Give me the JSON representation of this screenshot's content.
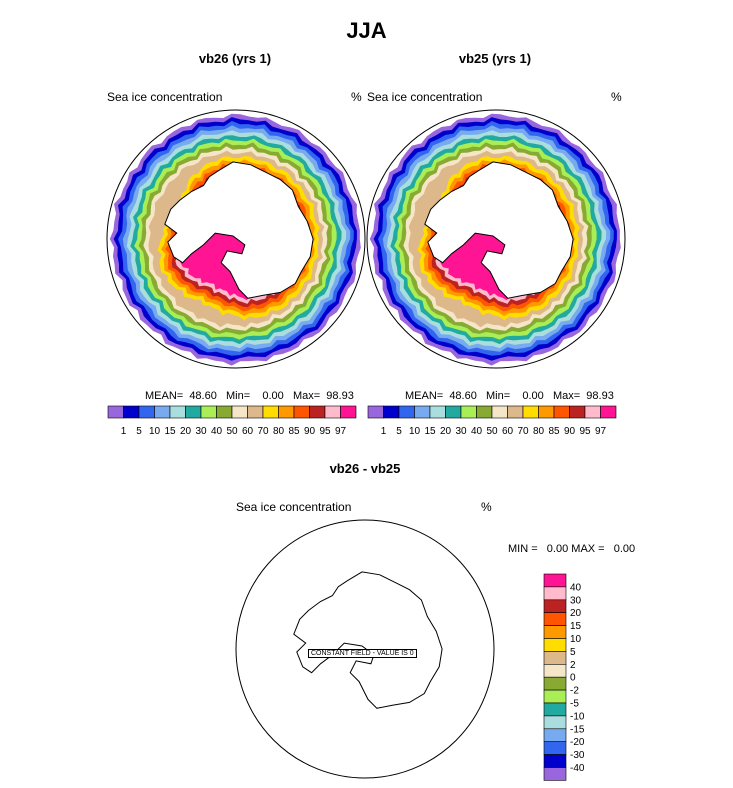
{
  "main_title": "JJA",
  "colors": {
    "ice": [
      "#9966dd",
      "#0000cc",
      "#3366ee",
      "#77aaee",
      "#aadddd",
      "#22aaa0",
      "#aaee55",
      "#88aa33",
      "#f5e6c8",
      "#ddb88a",
      "#ffdd00",
      "#ff9900",
      "#ff5500",
      "#bb2222",
      "#ffbbcc",
      "#ff1493"
    ],
    "diff": [
      "#9966dd",
      "#0000cc",
      "#3366ee",
      "#77aaee",
      "#aadddd",
      "#22aaa0",
      "#aaee55",
      "#88aa33",
      "#f5e6c8",
      "#ddb88a",
      "#ffdd00",
      "#ff9900",
      "#ff5500",
      "#bb2222",
      "#ffbbcc",
      "#ff1493"
    ]
  },
  "panels": [
    {
      "title": "vb26 (yrs 1)",
      "left_label": "Sea ice concentration",
      "right_label": "%",
      "stats": "MEAN=  48.60   Min=    0.00   Max=  98.93"
    },
    {
      "title": "vb25 (yrs 1)",
      "left_label": "Sea ice concentration",
      "right_label": "%",
      "stats": "MEAN=  48.60   Min=    0.00   Max=  98.93"
    }
  ],
  "ice_colorbar_labels": [
    "1",
    "5",
    "10",
    "15",
    "20",
    "30",
    "40",
    "50",
    "60",
    "70",
    "80",
    "85",
    "90",
    "95",
    "97"
  ],
  "diff_panel": {
    "title": "vb26 - vb25",
    "left_label": "Sea ice concentration",
    "right_label": "%",
    "stats": "MIN =   0.00 MAX =   0.00",
    "annotation": "CONSTANT FIELD - VALUE IS 0",
    "colorbar_labels": [
      "40",
      "30",
      "20",
      "15",
      "10",
      "5",
      "2",
      "0",
      "-2",
      "-5",
      "-10",
      "-15",
      "-20",
      "-30",
      "-40"
    ]
  },
  "chart_data": [
    {
      "type": "heatmap",
      "title": "vb26 (yrs 1)",
      "variable": "Sea ice concentration",
      "units": "%",
      "levels": [
        1,
        5,
        10,
        15,
        20,
        30,
        40,
        50,
        60,
        70,
        80,
        85,
        90,
        95,
        97
      ],
      "mean": 48.6,
      "min": 0.0,
      "max": 98.93
    },
    {
      "type": "heatmap",
      "title": "vb25 (yrs 1)",
      "variable": "Sea ice concentration",
      "units": "%",
      "levels": [
        1,
        5,
        10,
        15,
        20,
        30,
        40,
        50,
        60,
        70,
        80,
        85,
        90,
        95,
        97
      ],
      "mean": 48.6,
      "min": 0.0,
      "max": 98.93
    },
    {
      "type": "heatmap",
      "title": "vb26 - vb25",
      "variable": "Sea ice concentration",
      "units": "%",
      "levels": [
        40,
        30,
        20,
        15,
        10,
        5,
        2,
        0,
        -2,
        -5,
        -10,
        -15,
        -20,
        -30,
        -40
      ],
      "min": 0.0,
      "max": 0.0,
      "constant_value": 0
    }
  ]
}
